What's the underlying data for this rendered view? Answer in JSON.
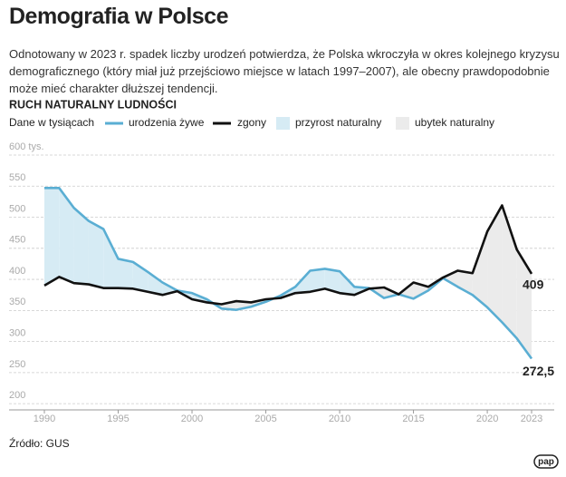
{
  "chart_data": {
    "type": "line",
    "title": "Demografia w Polsce",
    "subtitle": "Odnotowany w 2023 r. spadek liczby urodzeń potwierdza, że Polska wkroczyła w okres kolejnego kryzysu demograficznego (który miał już przejściowo miejsce w latach 1997–2007), ale obecny prawdopodobnie może mieć charakter dłuższej tendencji.",
    "chart_title": "RUCH NATURALNY LUDNOŚCI",
    "units_note": "Dane w tysiącach",
    "x": [
      1990,
      1991,
      1992,
      1993,
      1994,
      1995,
      1996,
      1997,
      1998,
      1999,
      2000,
      2001,
      2002,
      2003,
      2004,
      2005,
      2006,
      2007,
      2008,
      2009,
      2010,
      2011,
      2012,
      2013,
      2014,
      2015,
      2016,
      2017,
      2018,
      2019,
      2020,
      2021,
      2022,
      2023
    ],
    "series": [
      {
        "name": "urodzenia żywe",
        "color": "#5aaed3",
        "values": [
          547,
          547,
          515,
          494,
          481,
          433,
          428,
          412,
          395,
          382,
          378,
          368,
          353,
          351,
          356,
          364,
          374,
          388,
          414,
          417,
          413,
          388,
          386,
          370,
          376,
          369,
          382,
          402,
          388,
          375,
          355,
          331,
          305,
          272.5
        ],
        "value_labels": [
          null,
          null,
          null,
          null,
          null,
          null,
          null,
          null,
          null,
          null,
          null,
          null,
          null,
          null,
          null,
          null,
          null,
          null,
          null,
          null,
          null,
          null,
          null,
          null,
          null,
          null,
          null,
          null,
          null,
          null,
          null,
          null,
          null,
          "272,5"
        ]
      },
      {
        "name": "zgony",
        "color": "#111111",
        "values": [
          390,
          404,
          394,
          392,
          386,
          386,
          385,
          380,
          375,
          381,
          368,
          363,
          360,
          365,
          363,
          368,
          370,
          378,
          380,
          385,
          378,
          375,
          385,
          387,
          376,
          395,
          388,
          403,
          414,
          410,
          477,
          519,
          448,
          409
        ],
        "value_labels": [
          null,
          null,
          null,
          null,
          null,
          null,
          null,
          null,
          null,
          null,
          null,
          null,
          null,
          null,
          null,
          null,
          null,
          null,
          null,
          null,
          null,
          null,
          null,
          null,
          null,
          null,
          null,
          null,
          null,
          null,
          null,
          null,
          null,
          "409"
        ]
      }
    ],
    "fills": [
      {
        "name": "przyrost naturalny",
        "color": "#d6ebf4"
      },
      {
        "name": "ubytek naturalny",
        "color": "#ebebeb"
      }
    ],
    "xlim": [
      1990,
      2023
    ],
    "xticks": [
      1990,
      1995,
      2000,
      2005,
      2010,
      2015,
      2020,
      2023
    ],
    "ylim": [
      190,
      600
    ],
    "yticks": [
      200,
      250,
      300,
      350,
      400,
      450,
      500,
      550,
      {
        "value": 600,
        "label": "600 tys."
      }
    ],
    "grid": true,
    "source": "Źródło: GUS",
    "logo": "pap"
  }
}
